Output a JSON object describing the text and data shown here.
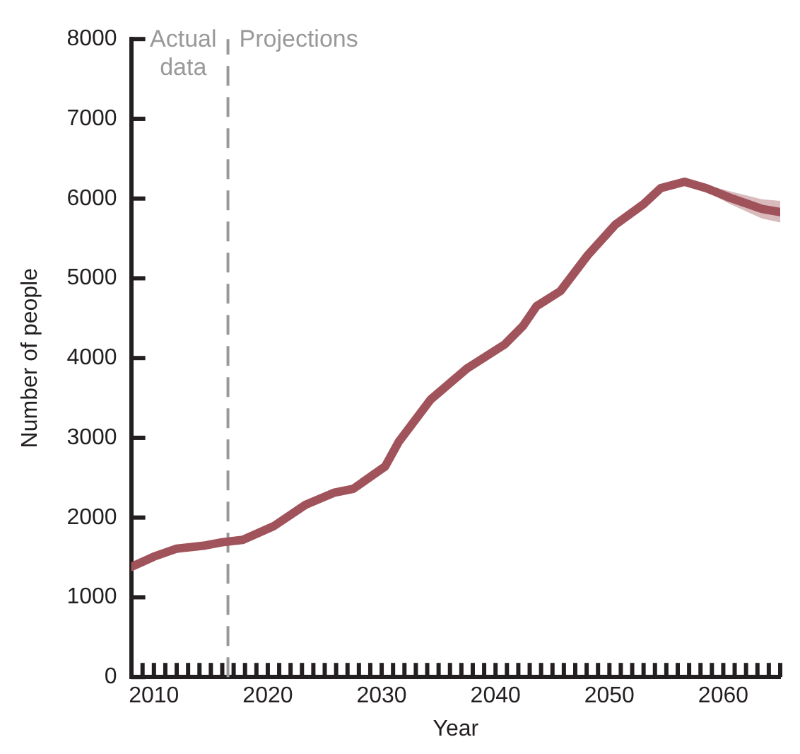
{
  "chart_data": {
    "type": "line",
    "xlabel": "Year",
    "ylabel": "Number of people",
    "x": [
      2008,
      2010,
      2012,
      2014.5,
      2016,
      2017.8,
      2020.5,
      2023.3,
      2025.8,
      2027.5,
      2030.3,
      2031.5,
      2034.3,
      2037.5,
      2040.8,
      2042.4,
      2043.6,
      2045.7,
      2048.1,
      2050.5,
      2053,
      2054.5,
      2056.6,
      2058.5,
      2060.6,
      2063.4,
      2065
    ],
    "series": [
      {
        "color": "#a1535b",
        "values": [
          1380,
          1510,
          1610,
          1650,
          1690,
          1720,
          1890,
          2160,
          2310,
          2360,
          2640,
          2950,
          3480,
          3870,
          4170,
          4400,
          4650,
          4840,
          5290,
          5670,
          5930,
          6130,
          6210,
          6130,
          6010,
          5870,
          5830
        ],
        "lower": [
          1380,
          1510,
          1610,
          1650,
          1690,
          1720,
          1890,
          2160,
          2310,
          2360,
          2640,
          2950,
          3480,
          3870,
          4170,
          4400,
          4650,
          4840,
          5290,
          5670,
          5930,
          6130,
          6190,
          6090,
          5930,
          5750,
          5700
        ],
        "upper": [
          1380,
          1510,
          1610,
          1650,
          1690,
          1720,
          1890,
          2160,
          2310,
          2360,
          2640,
          2950,
          3480,
          3870,
          4170,
          4400,
          4650,
          4840,
          5290,
          5670,
          5930,
          6130,
          6230,
          6170,
          6090,
          5990,
          5970
        ]
      }
    ],
    "xlim": [
      2008,
      2065
    ],
    "xticks": [
      {
        "value": 2009,
        "label": null
      },
      {
        "value": 2010,
        "label": "2010"
      },
      {
        "value": 2011,
        "label": null
      },
      {
        "value": 2012,
        "label": null
      },
      {
        "value": 2013,
        "label": null
      },
      {
        "value": 2014,
        "label": null
      },
      {
        "value": 2015,
        "label": null
      },
      {
        "value": 2016,
        "label": null
      },
      {
        "value": 2017,
        "label": null
      },
      {
        "value": 2018,
        "label": null
      },
      {
        "value": 2019,
        "label": null
      },
      {
        "value": 2020,
        "label": "2020"
      },
      {
        "value": 2021,
        "label": null
      },
      {
        "value": 2022,
        "label": null
      },
      {
        "value": 2023,
        "label": null
      },
      {
        "value": 2024,
        "label": null
      },
      {
        "value": 2025,
        "label": null
      },
      {
        "value": 2026,
        "label": null
      },
      {
        "value": 2027,
        "label": null
      },
      {
        "value": 2028,
        "label": null
      },
      {
        "value": 2029,
        "label": null
      },
      {
        "value": 2030,
        "label": "2030"
      },
      {
        "value": 2031,
        "label": null
      },
      {
        "value": 2032,
        "label": null
      },
      {
        "value": 2033,
        "label": null
      },
      {
        "value": 2034,
        "label": null
      },
      {
        "value": 2035,
        "label": null
      },
      {
        "value": 2036,
        "label": null
      },
      {
        "value": 2037,
        "label": null
      },
      {
        "value": 2038,
        "label": null
      },
      {
        "value": 2039,
        "label": null
      },
      {
        "value": 2040,
        "label": "2040"
      },
      {
        "value": 2041,
        "label": null
      },
      {
        "value": 2042,
        "label": null
      },
      {
        "value": 2043,
        "label": null
      },
      {
        "value": 2044,
        "label": null
      },
      {
        "value": 2045,
        "label": null
      },
      {
        "value": 2046,
        "label": null
      },
      {
        "value": 2047,
        "label": null
      },
      {
        "value": 2048,
        "label": null
      },
      {
        "value": 2049,
        "label": null
      },
      {
        "value": 2050,
        "label": "2050"
      },
      {
        "value": 2051,
        "label": null
      },
      {
        "value": 2052,
        "label": null
      },
      {
        "value": 2053,
        "label": null
      },
      {
        "value": 2054,
        "label": null
      },
      {
        "value": 2055,
        "label": null
      },
      {
        "value": 2056,
        "label": null
      },
      {
        "value": 2057,
        "label": null
      },
      {
        "value": 2058,
        "label": null
      },
      {
        "value": 2059,
        "label": null
      },
      {
        "value": 2060,
        "label": "2060"
      },
      {
        "value": 2061,
        "label": null
      },
      {
        "value": 2062,
        "label": null
      },
      {
        "value": 2063,
        "label": null
      },
      {
        "value": 2064,
        "label": null
      },
      {
        "value": 2065,
        "label": null
      }
    ],
    "ylim": [
      0,
      8000
    ],
    "yticks": [
      0,
      1000,
      2000,
      3000,
      4000,
      5000,
      6000,
      7000,
      8000
    ],
    "ref_lines": [
      {
        "axis": "x",
        "value": 2016.5,
        "color": "#999999",
        "line_style": "dashed"
      }
    ],
    "annotations": [
      "Actual data",
      "Projections"
    ],
    "grid": false,
    "legend": false,
    "marker": "none",
    "line_style": "solid"
  }
}
